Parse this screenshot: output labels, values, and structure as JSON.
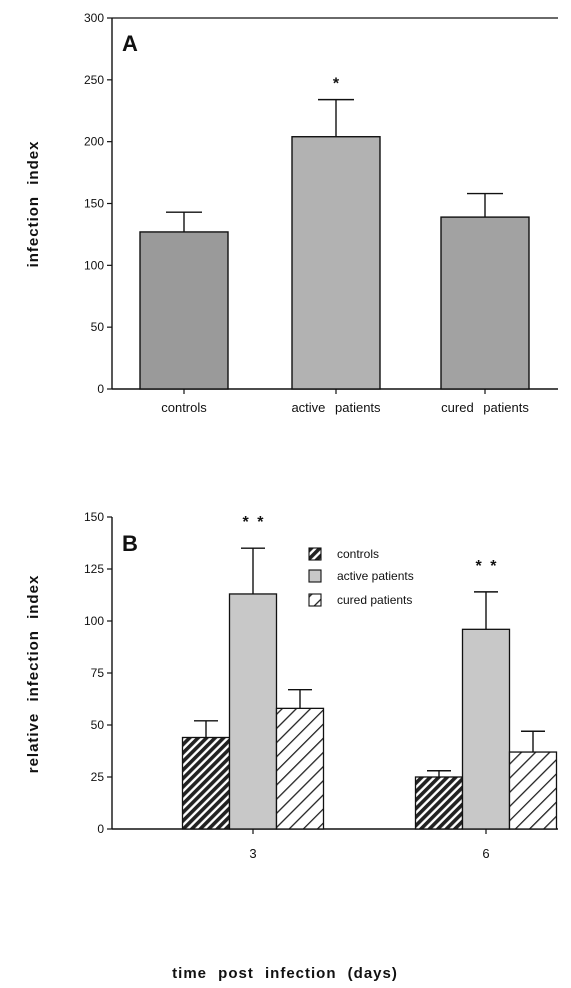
{
  "chart_data": [
    {
      "type": "bar",
      "panel_label": "A",
      "ylabel": "infection index",
      "xlabel": "",
      "ylim": [
        0,
        300
      ],
      "yticks": [
        0,
        50,
        100,
        150,
        200,
        250,
        300
      ],
      "categories": [
        "controls",
        "active patients",
        "cured patients"
      ],
      "values": [
        127,
        204,
        139
      ],
      "errors": [
        16,
        30,
        19
      ],
      "annotations": [
        "",
        "*",
        ""
      ],
      "colors": [
        "#9a9a9a",
        "#b2b2b2",
        "#a2a2a2"
      ]
    },
    {
      "type": "bar",
      "panel_label": "B",
      "ylabel": "relative infection index",
      "xlabel": "time post infection (days)",
      "ylim": [
        0,
        150
      ],
      "yticks": [
        0,
        25,
        50,
        75,
        100,
        125,
        150
      ],
      "categories": [
        "3",
        "6"
      ],
      "series": [
        {
          "name": "controls",
          "values": [
            44,
            25
          ],
          "errors": [
            8,
            3
          ],
          "pattern": "dense-hatch",
          "color": "#333333"
        },
        {
          "name": "active patients",
          "values": [
            113,
            96
          ],
          "errors": [
            22,
            18
          ],
          "pattern": "solid",
          "color": "#c8c8c8"
        },
        {
          "name": "cured patients",
          "values": [
            58,
            37
          ],
          "errors": [
            9,
            10
          ],
          "pattern": "hatch",
          "color": "#ffffff"
        }
      ],
      "annotations": [
        "* *",
        "* *"
      ],
      "legend_position": "top-center"
    }
  ]
}
